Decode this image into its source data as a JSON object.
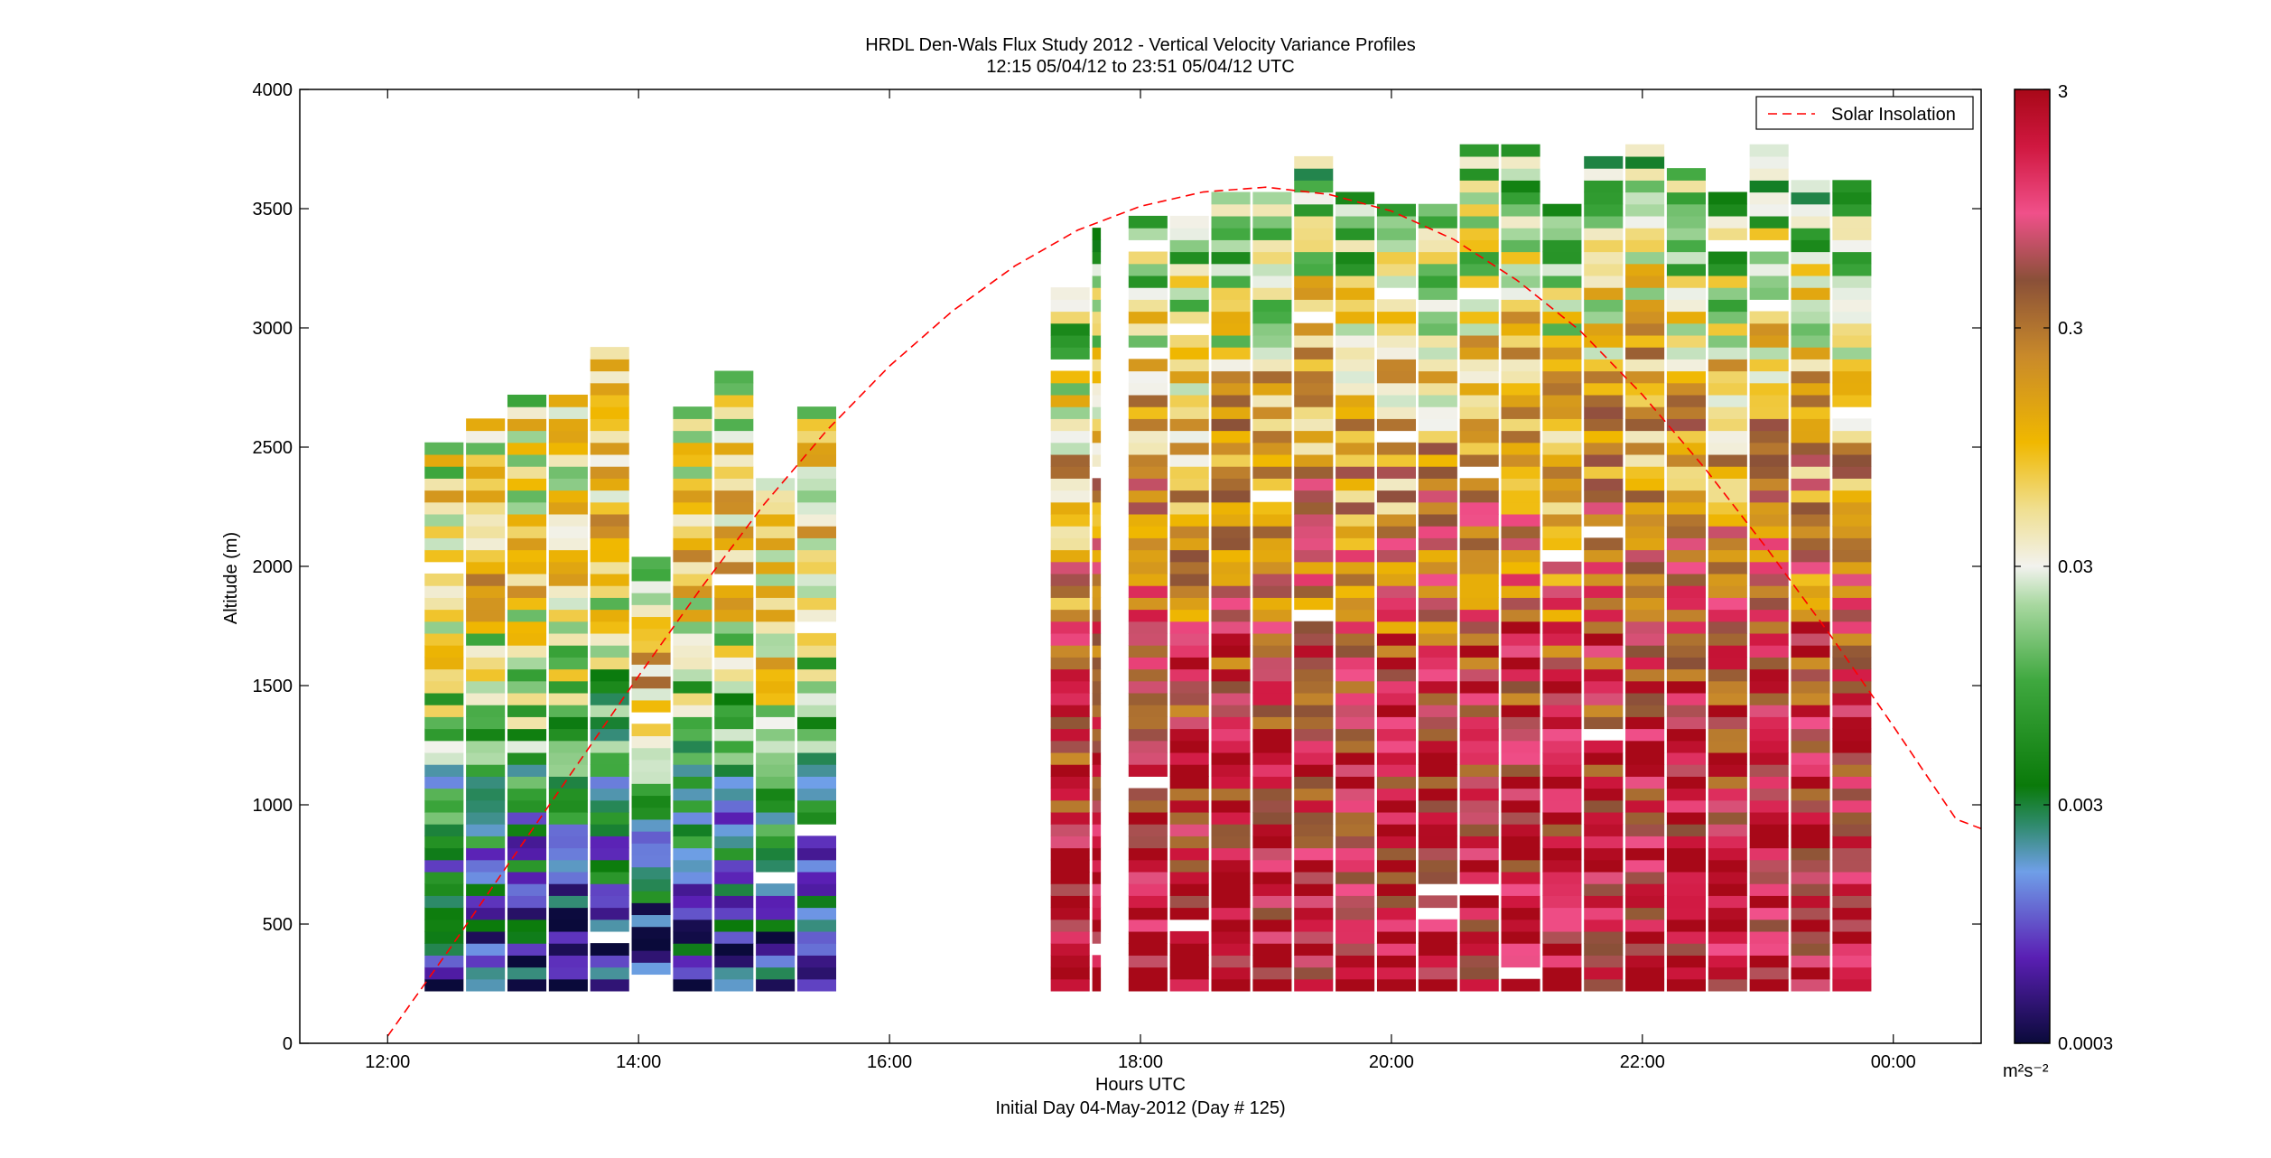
{
  "chart_data": {
    "type": "heatmap",
    "title": "HRDL Den-Wals Flux Study 2012 - Vertical Velocity Variance Profiles",
    "subtitle": "12:15 05/04/12 to 23:51 05/04/12  UTC",
    "xlabel": "Hours UTC",
    "xlabel2": "Initial Day 04-May-2012 (Day # 125)",
    "ylabel": "Altitude (m)",
    "xlim": [
      11.3,
      24.7
    ],
    "ylim": [
      0,
      4000
    ],
    "x_ticks": [
      {
        "value": 12,
        "label": "12:00"
      },
      {
        "value": 14,
        "label": "14:00"
      },
      {
        "value": 16,
        "label": "16:00"
      },
      {
        "value": 18,
        "label": "18:00"
      },
      {
        "value": 20,
        "label": "20:00"
      },
      {
        "value": 22,
        "label": "22:00"
      },
      {
        "value": 24,
        "label": "00:00"
      }
    ],
    "y_ticks": [
      {
        "value": 0,
        "label": "0"
      },
      {
        "value": 500,
        "label": "500"
      },
      {
        "value": 1000,
        "label": "1000"
      },
      {
        "value": 1500,
        "label": "1500"
      },
      {
        "value": 2000,
        "label": "2000"
      },
      {
        "value": 2500,
        "label": "2500"
      },
      {
        "value": 3000,
        "label": "3000"
      },
      {
        "value": 3500,
        "label": "3500"
      },
      {
        "value": 4000,
        "label": "4000"
      }
    ],
    "colorbar": {
      "scale": "log",
      "range": [
        0.0003,
        3
      ],
      "unit_label": "m²s⁻²",
      "ticks": [
        {
          "value": 3,
          "label": "3"
        },
        {
          "value": 0.3,
          "label": "0.3"
        },
        {
          "value": 0.03,
          "label": "0.03"
        },
        {
          "value": 0.003,
          "label": "0.003"
        },
        {
          "value": 0.0003,
          "label": "0.0003"
        }
      ],
      "color_stops": [
        {
          "t": 0.0,
          "color": "#0a0a3a"
        },
        {
          "t": 0.09,
          "color": "#5a1fb4"
        },
        {
          "t": 0.18,
          "color": "#6f9fe8"
        },
        {
          "t": 0.23,
          "color": "#2e8a6a"
        },
        {
          "t": 0.27,
          "color": "#0a7a0a"
        },
        {
          "t": 0.38,
          "color": "#3fa83f"
        },
        {
          "t": 0.46,
          "color": "#a8d8a0"
        },
        {
          "t": 0.5,
          "color": "#f2f2ee"
        },
        {
          "t": 0.56,
          "color": "#f0df90"
        },
        {
          "t": 0.63,
          "color": "#f0b800"
        },
        {
          "t": 0.72,
          "color": "#c98a2a"
        },
        {
          "t": 0.8,
          "color": "#8a5038"
        },
        {
          "t": 0.87,
          "color": "#f0508a"
        },
        {
          "t": 0.94,
          "color": "#d01840"
        },
        {
          "t": 1.0,
          "color": "#a80818"
        }
      ]
    },
    "legend": {
      "placement": "top-right",
      "entries": [
        {
          "label": "Solar Insolation",
          "style": "dashed",
          "color": "#ff0000"
        }
      ]
    },
    "series": [
      {
        "name": "Solar Insolation",
        "type": "line",
        "color": "#ff0000",
        "style": "dashed",
        "x": [
          12.0,
          12.5,
          13.0,
          13.5,
          14.0,
          14.5,
          15.0,
          15.5,
          16.0,
          16.5,
          17.0,
          17.5,
          18.0,
          18.5,
          19.0,
          19.5,
          20.0,
          20.5,
          21.0,
          21.5,
          22.0,
          22.5,
          23.0,
          23.5,
          24.0,
          24.5,
          24.7
        ],
        "y": [
          30,
          400,
          780,
          1160,
          1540,
          1910,
          2260,
          2570,
          2840,
          3070,
          3260,
          3410,
          3510,
          3570,
          3590,
          3560,
          3490,
          3370,
          3200,
          2990,
          2720,
          2410,
          2070,
          1710,
          1330,
          940,
          900
        ]
      }
    ],
    "profiles": [
      {
        "time": 12.45,
        "top": 2500,
        "bottom": 220
      },
      {
        "time": 12.78,
        "top": 2600,
        "bottom": 220
      },
      {
        "time": 13.11,
        "top": 2690,
        "bottom": 220
      },
      {
        "time": 13.44,
        "top": 2690,
        "bottom": 220
      },
      {
        "time": 13.77,
        "top": 2900,
        "bottom": 220
      },
      {
        "time": 14.1,
        "top": 2020,
        "bottom": 290
      },
      {
        "time": 14.43,
        "top": 2660,
        "bottom": 220
      },
      {
        "time": 14.76,
        "top": 2780,
        "bottom": 220
      },
      {
        "time": 15.09,
        "top": 2330,
        "bottom": 220
      },
      {
        "time": 15.42,
        "top": 2660,
        "bottom": 220
      },
      {
        "time": 17.44,
        "top": 3170,
        "bottom": 220
      },
      {
        "time": 17.65,
        "top": 3420,
        "bottom": 220
      },
      {
        "time": 18.06,
        "top": 3460,
        "bottom": 220
      },
      {
        "time": 18.39,
        "top": 3460,
        "bottom": 220
      },
      {
        "time": 18.72,
        "top": 3530,
        "bottom": 220
      },
      {
        "time": 19.05,
        "top": 3560,
        "bottom": 220
      },
      {
        "time": 19.38,
        "top": 3700,
        "bottom": 220
      },
      {
        "time": 19.71,
        "top": 3560,
        "bottom": 220
      },
      {
        "time": 20.04,
        "top": 3490,
        "bottom": 220
      },
      {
        "time": 20.37,
        "top": 3490,
        "bottom": 220
      },
      {
        "time": 20.7,
        "top": 3740,
        "bottom": 220
      },
      {
        "time": 21.03,
        "top": 3740,
        "bottom": 220
      },
      {
        "time": 21.36,
        "top": 3500,
        "bottom": 220
      },
      {
        "time": 21.69,
        "top": 3740,
        "bottom": 220
      },
      {
        "time": 22.02,
        "top": 3770,
        "bottom": 220
      },
      {
        "time": 22.35,
        "top": 3640,
        "bottom": 220
      },
      {
        "time": 22.68,
        "top": 3540,
        "bottom": 220
      },
      {
        "time": 23.01,
        "top": 3740,
        "bottom": 220
      },
      {
        "time": 23.34,
        "top": 3620,
        "bottom": 220
      },
      {
        "time": 23.67,
        "top": 3590,
        "bottom": 220
      }
    ]
  }
}
